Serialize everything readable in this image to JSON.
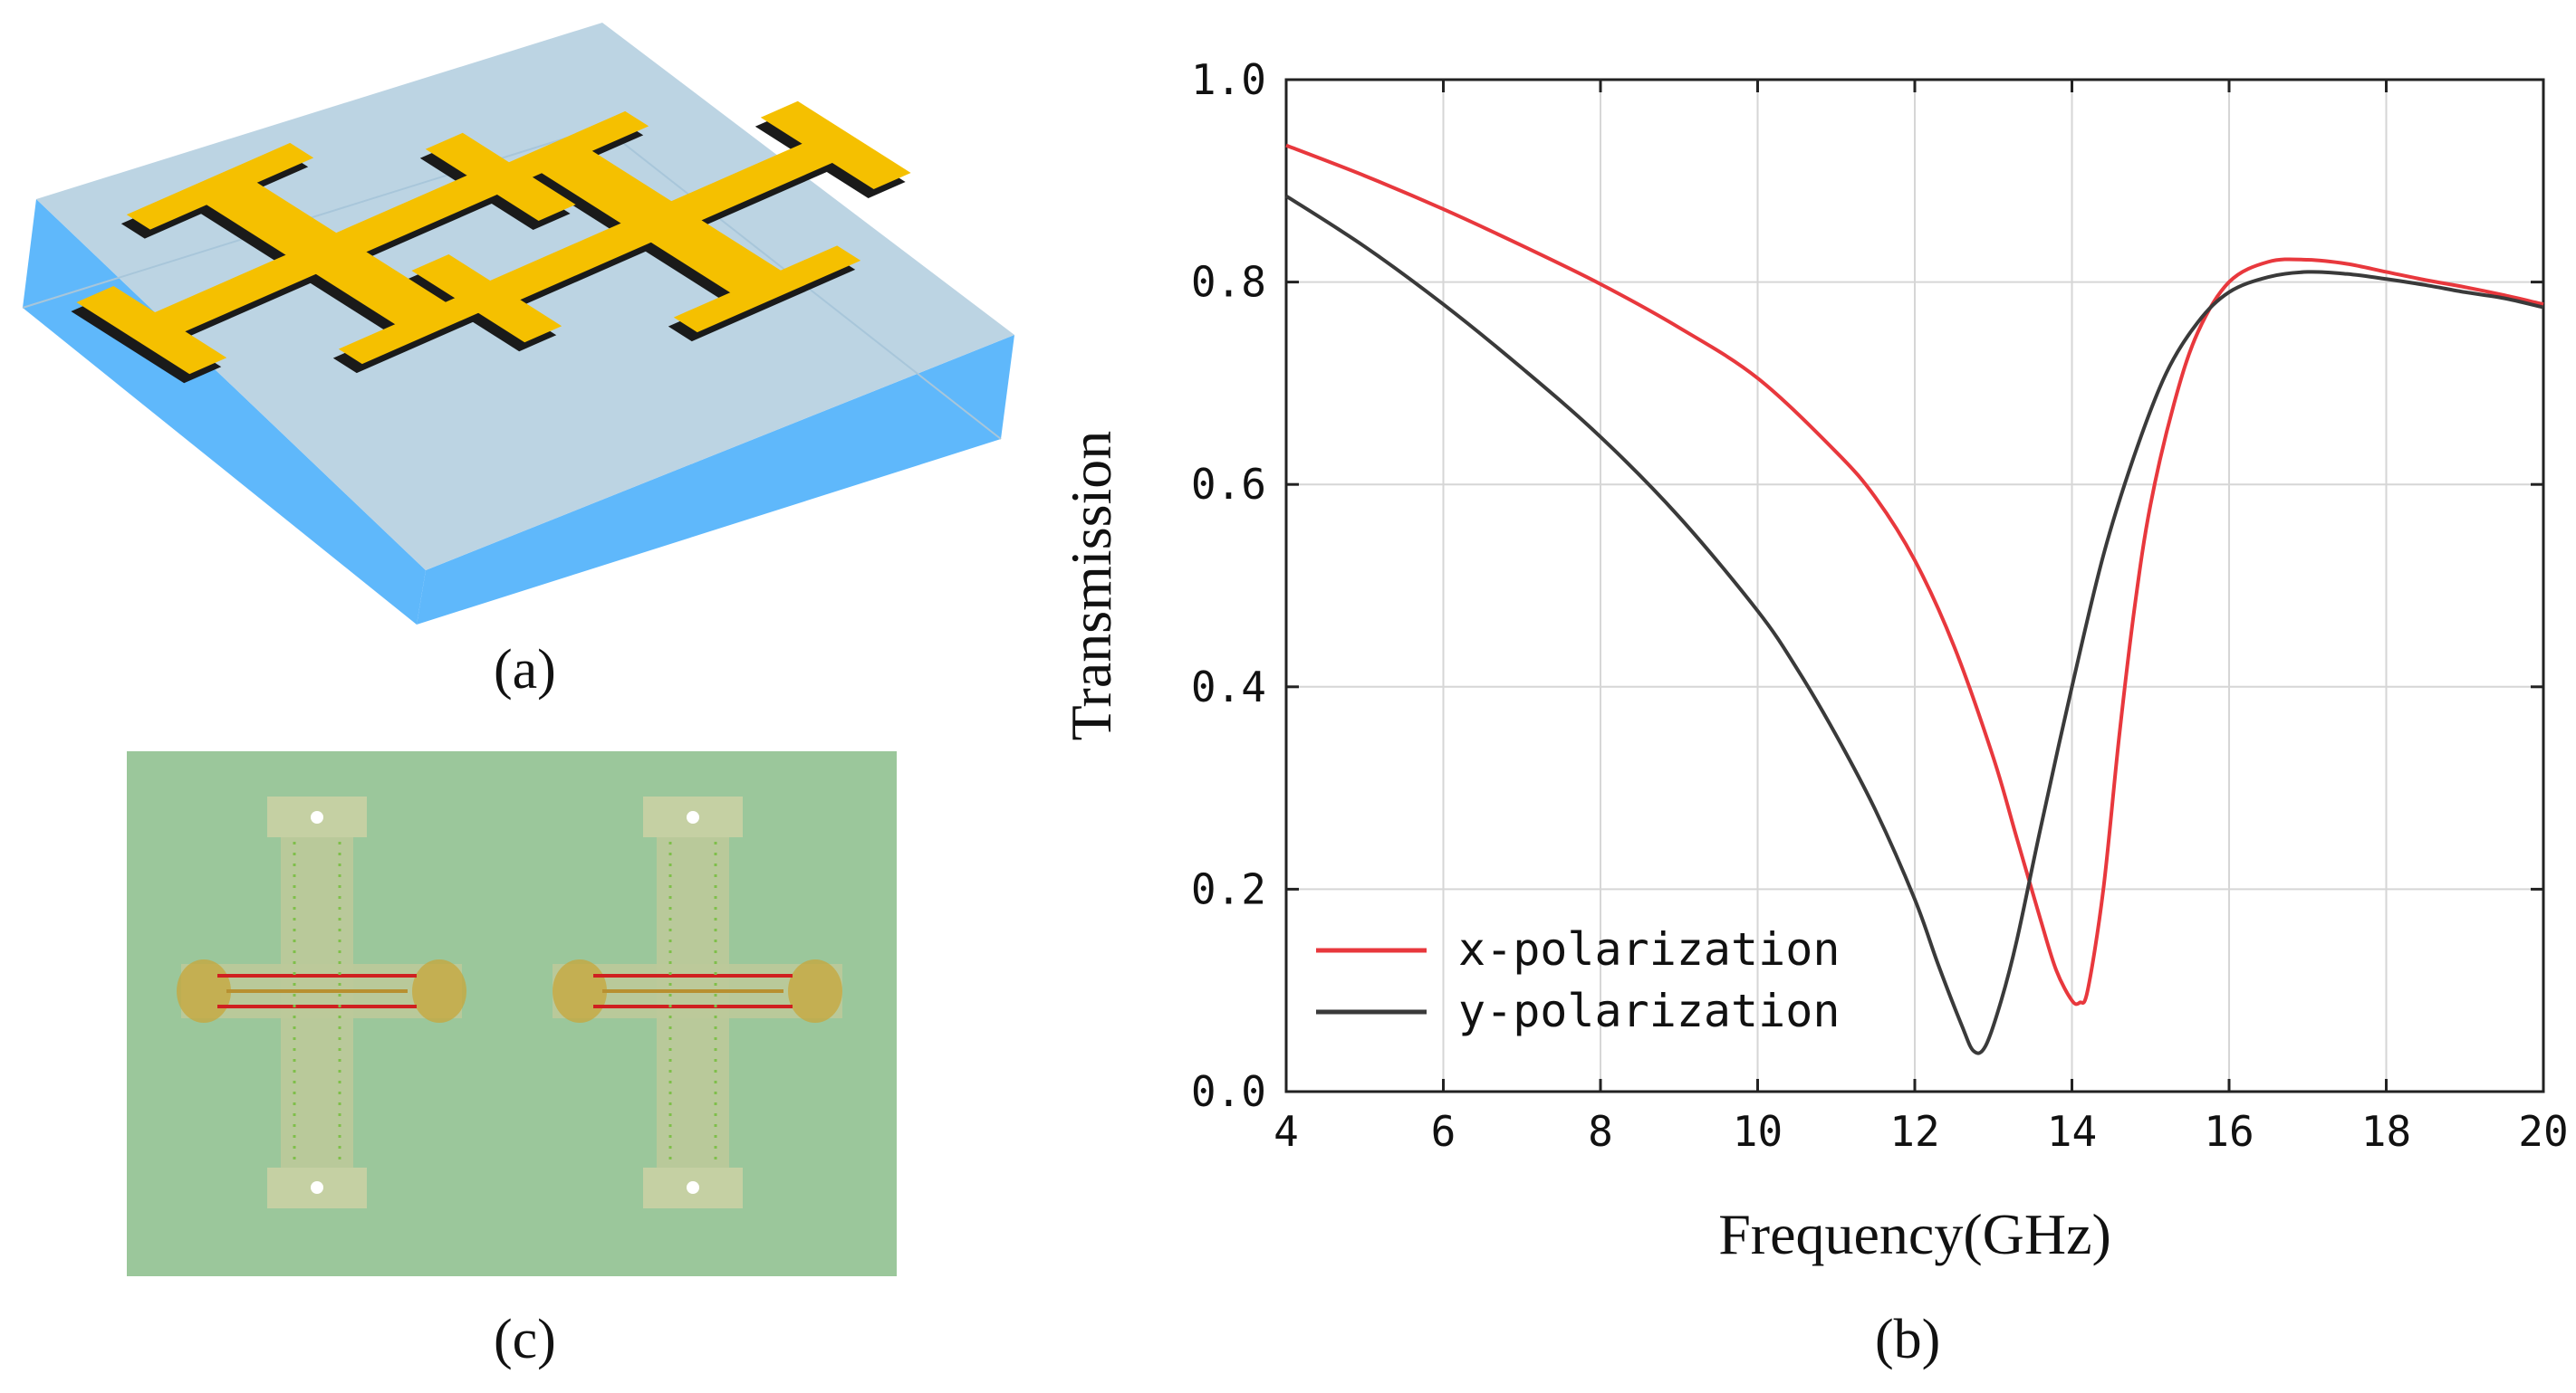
{
  "captions": {
    "a": "(a)",
    "b": "(b)",
    "c": "(c)"
  },
  "colors": {
    "x_pol": "#e8383d",
    "y_pol": "#3a3a3a",
    "substrate_top": "#bcd4e3",
    "substrate_side": "#5fb8fb",
    "metal": "#f5c000",
    "field_bg": "#9bc79b"
  },
  "chart_data": {
    "type": "line",
    "title": "",
    "xlabel": "Frequency(GHz)",
    "ylabel": "Transmission",
    "xlim": [
      4,
      20
    ],
    "ylim": [
      0,
      1
    ],
    "x_ticks": [
      "4",
      "6",
      "8",
      "10",
      "12",
      "14",
      "16",
      "18",
      "20"
    ],
    "y_ticks": [
      "0.0",
      "0.2",
      "0.4",
      "0.6",
      "0.8",
      "1.0"
    ],
    "grid": true,
    "legend_position": "bottom-left",
    "series": [
      {
        "name": "x-polarization",
        "color": "#e8383d",
        "x": [
          4,
          5,
          6,
          7,
          8,
          9,
          10,
          11,
          11.5,
          12,
          12.5,
          13,
          13.3,
          13.6,
          13.8,
          14.0,
          14.1,
          14.2,
          14.4,
          14.6,
          14.8,
          15.0,
          15.3,
          15.6,
          16.0,
          16.5,
          17.0,
          17.5,
          18.0,
          18.5,
          19.0,
          19.5,
          20.0
        ],
        "values": [
          0.935,
          0.905,
          0.872,
          0.836,
          0.798,
          0.755,
          0.705,
          0.632,
          0.587,
          0.525,
          0.44,
          0.33,
          0.25,
          0.17,
          0.12,
          0.09,
          0.088,
          0.1,
          0.2,
          0.35,
          0.48,
          0.58,
          0.68,
          0.75,
          0.8,
          0.82,
          0.822,
          0.818,
          0.81,
          0.802,
          0.795,
          0.787,
          0.778
        ]
      },
      {
        "name": "y-polarization",
        "color": "#3a3a3a",
        "x": [
          4,
          5,
          6,
          7,
          8,
          9,
          10,
          10.5,
          11,
          11.5,
          12,
          12.3,
          12.6,
          12.75,
          12.9,
          13.1,
          13.3,
          13.6,
          14.0,
          14.4,
          14.8,
          15.2,
          15.6,
          16.0,
          16.5,
          17.0,
          17.5,
          18.0,
          18.5,
          19.0,
          19.5,
          20.0
        ],
        "values": [
          0.885,
          0.835,
          0.778,
          0.715,
          0.647,
          0.568,
          0.475,
          0.418,
          0.352,
          0.278,
          0.19,
          0.125,
          0.065,
          0.04,
          0.045,
          0.09,
          0.15,
          0.26,
          0.4,
          0.53,
          0.63,
          0.71,
          0.76,
          0.79,
          0.805,
          0.81,
          0.808,
          0.803,
          0.797,
          0.79,
          0.784,
          0.775
        ]
      }
    ]
  }
}
